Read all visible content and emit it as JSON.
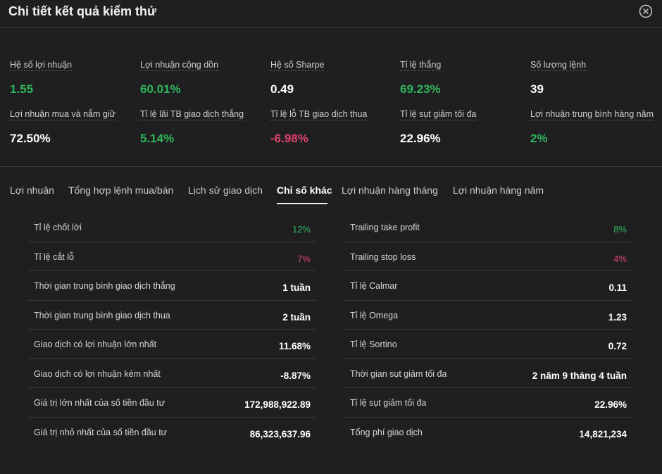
{
  "header": {
    "title": "Chi tiết kết quả kiểm thử"
  },
  "stats": [
    {
      "label": "Hệ số lợi nhuận",
      "value": "1.55",
      "color": "green"
    },
    {
      "label": "Lợi nhuận cộng dồn",
      "value": "60.01%",
      "color": "green"
    },
    {
      "label": "Hệ số Sharpe",
      "value": "0.49",
      "color": "white"
    },
    {
      "label": "Tỉ lệ thắng",
      "value": "69.23%",
      "color": "green"
    },
    {
      "label": "Số lượng lệnh",
      "value": "39",
      "color": "white"
    },
    {
      "label": "Lợi nhuận mua và nắm giữ",
      "value": "72.50%",
      "color": "white"
    },
    {
      "label": "Tỉ lệ lãi TB giao dịch thắng",
      "value": "5.14%",
      "color": "green"
    },
    {
      "label": "Tỉ lệ lỗ TB giao dịch thua",
      "value": "-6.98%",
      "color": "red"
    },
    {
      "label": "Tỉ lệ sụt giảm tối đa",
      "value": "22.96%",
      "color": "white"
    },
    {
      "label": "Lợi nhuận trung bình hàng năm",
      "value": "2%",
      "color": "green"
    }
  ],
  "tabs": [
    {
      "label": "Lợi nhuận"
    },
    {
      "label": "Tổng hợp lệnh mua/bán"
    },
    {
      "label": "Lịch sử giao dịch"
    },
    {
      "label": "Chỉ số khác",
      "active": true
    },
    {
      "label": "Lợi nhuận hàng tháng"
    },
    {
      "label": "Lợi nhuận hàng năm"
    }
  ],
  "metrics_left": [
    {
      "label": "Tỉ lệ chốt lời",
      "value": "12%",
      "color": "green"
    },
    {
      "label": "Tỉ lệ cắt lỗ",
      "value": "7%",
      "color": "red"
    },
    {
      "label": "Thời gian trung bình giao dịch thắng",
      "value": "1 tuần"
    },
    {
      "label": "Thời gian trung bình giao dịch thua",
      "value": "2 tuần"
    },
    {
      "label": "Giao dịch có lợi nhuận lớn nhất",
      "value": "11.68%"
    },
    {
      "label": "Giao dịch có lợi nhuận kém nhất",
      "value": "-8.87%"
    },
    {
      "label": "Giá trị lớn nhất của số tiền đầu tư",
      "value": "172,988,922.89"
    },
    {
      "label": "Giá trị nhỏ nhất của số tiền đầu tư",
      "value": "86,323,637.96"
    }
  ],
  "metrics_right": [
    {
      "label": "Trailing take profit",
      "value": "8%",
      "color": "green"
    },
    {
      "label": "Trailing stop loss",
      "value": "4%",
      "color": "red"
    },
    {
      "label": "Tỉ lệ Calmar",
      "value": "0.11"
    },
    {
      "label": "Tỉ lệ Omega",
      "value": "1.23"
    },
    {
      "label": "Tỉ lệ Sortino",
      "value": "0.72"
    },
    {
      "label": "Thời gian sụt giảm tối đa",
      "value": "2 năm 9 tháng 4 tuần"
    },
    {
      "label": "Tỉ lệ sụt giảm tối đa",
      "value": "22.96%"
    },
    {
      "label": "Tổng phí giao dịch",
      "value": "14,821,234"
    }
  ],
  "colors": {
    "green": "#2fb75b",
    "red": "#e0436b",
    "background": "#1f1f21"
  },
  "icons": {
    "close": "close-circle-icon"
  }
}
